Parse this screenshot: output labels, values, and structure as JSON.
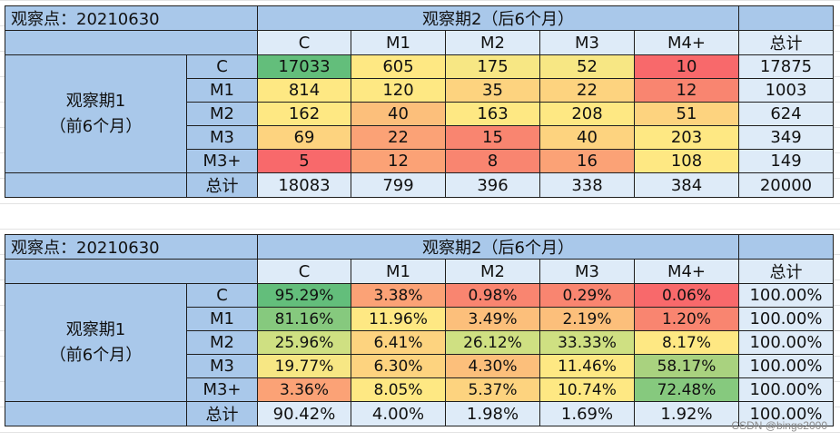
{
  "table1": {
    "corner": "观察点：20210630",
    "col_group_title": "观察期2（后6个月）",
    "col_headers": [
      "C",
      "M1",
      "M2",
      "M3",
      "M4+",
      "总计"
    ],
    "row_group_title_line1": "观察期1",
    "row_group_title_line2": "（前6个月）",
    "rows": [
      {
        "label": "C",
        "cells": [
          "17033",
          "605",
          "175",
          "52",
          "10"
        ],
        "total": "17875"
      },
      {
        "label": "M1",
        "cells": [
          "814",
          "120",
          "35",
          "22",
          "12"
        ],
        "total": "1003"
      },
      {
        "label": "M2",
        "cells": [
          "162",
          "40",
          "163",
          "208",
          "51"
        ],
        "total": "624"
      },
      {
        "label": "M3",
        "cells": [
          "69",
          "22",
          "15",
          "40",
          "203"
        ],
        "total": "349"
      },
      {
        "label": "M3+",
        "cells": [
          "5",
          "12",
          "8",
          "16",
          "108"
        ],
        "total": "149"
      }
    ],
    "total_row": {
      "label": "总计",
      "cells": [
        "18083",
        "799",
        "396",
        "338",
        "384"
      ],
      "total": "20000"
    },
    "cell_colors": [
      [
        "#63be7b",
        "#fee883",
        "#f7e784",
        "#f7e784",
        "#f8696b"
      ],
      [
        "#fee883",
        "#fee883",
        "#fdd37f",
        "#fdd37f",
        "#f98570"
      ],
      [
        "#fee883",
        "#fcbf7b",
        "#fee883",
        "#fee883",
        "#fdd37f"
      ],
      [
        "#fdd37f",
        "#fba276",
        "#f98570",
        "#fdd37f",
        "#fee883"
      ],
      [
        "#f8696b",
        "#fba276",
        "#f98570",
        "#fba276",
        "#fee883"
      ]
    ]
  },
  "table2": {
    "corner": "观察点：20210630",
    "col_group_title": "观察期2（后6个月）",
    "col_headers": [
      "C",
      "M1",
      "M2",
      "M3",
      "M4+",
      "总计"
    ],
    "row_group_title_line1": "观察期1",
    "row_group_title_line2": "（前6个月）",
    "rows": [
      {
        "label": "C",
        "cells": [
          "95.29%",
          "3.38%",
          "0.98%",
          "0.29%",
          "0.06%"
        ],
        "total": "100.00%"
      },
      {
        "label": "M1",
        "cells": [
          "81.16%",
          "11.96%",
          "3.49%",
          "2.19%",
          "1.20%"
        ],
        "total": "100.00%"
      },
      {
        "label": "M2",
        "cells": [
          "25.96%",
          "6.41%",
          "26.12%",
          "33.33%",
          "8.17%"
        ],
        "total": "100.00%"
      },
      {
        "label": "M3",
        "cells": [
          "19.77%",
          "6.30%",
          "4.30%",
          "11.46%",
          "58.17%"
        ],
        "total": "100.00%"
      },
      {
        "label": "M3+",
        "cells": [
          "3.36%",
          "8.05%",
          "5.37%",
          "10.74%",
          "72.48%"
        ],
        "total": "100.00%"
      }
    ],
    "total_row": {
      "label": "总计",
      "cells": [
        "90.42%",
        "4.00%",
        "1.98%",
        "1.69%",
        "1.92%"
      ],
      "total": "100.00%"
    },
    "cell_colors": [
      [
        "#63be7b",
        "#fba276",
        "#f98570",
        "#f98570",
        "#f8696b"
      ],
      [
        "#86c97e",
        "#fee883",
        "#fcbf7b",
        "#fcbf7b",
        "#f98570"
      ],
      [
        "#cfe082",
        "#fdd37f",
        "#cfe082",
        "#cfe082",
        "#fee883"
      ],
      [
        "#f7e784",
        "#fdd37f",
        "#fcbf7b",
        "#fee883",
        "#a9d27f"
      ],
      [
        "#fba276",
        "#fee883",
        "#fdd37f",
        "#fee883",
        "#86c97e"
      ]
    ]
  },
  "watermark": "CSDN @bingo2000"
}
